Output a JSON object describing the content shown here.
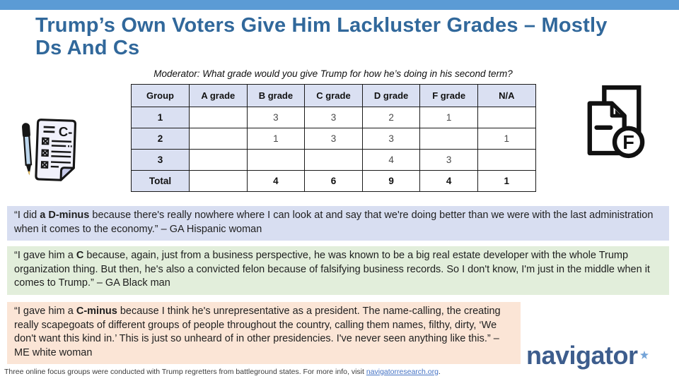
{
  "slide": {
    "title_line1": "Trump’s Own Voters Give Him Lackluster Grades – Mostly",
    "title_line2": "Ds And Cs",
    "moderator_question": "Moderator: What grade would you give Trump for how he’s doing in his second term?"
  },
  "table": {
    "headers": [
      "Group",
      "A grade",
      "B grade",
      "C grade",
      "D grade",
      "F grade",
      "N/A"
    ],
    "rows": [
      {
        "label": "1",
        "values": [
          "",
          "3",
          "3",
          "2",
          "1",
          ""
        ],
        "bold": false
      },
      {
        "label": "2",
        "values": [
          "",
          "1",
          "3",
          "3",
          "",
          "1"
        ],
        "bold": false
      },
      {
        "label": "3",
        "values": [
          "",
          "",
          "",
          "4",
          "3",
          ""
        ],
        "bold": false
      },
      {
        "label": "Total",
        "values": [
          "",
          "4",
          "6",
          "9",
          "4",
          "1"
        ],
        "bold": true
      }
    ]
  },
  "quotes": [
    {
      "bg": "#D8DEF1",
      "segments": [
        {
          "text": "“I did ",
          "bold": false
        },
        {
          "text": "a D-minus",
          "bold": true
        },
        {
          "text": " because there's really nowhere where I can look at and say that we're doing better than we were with the last administration when it comes to the economy.” – GA Hispanic woman",
          "bold": false
        }
      ]
    },
    {
      "bg": "#E2EEDB",
      "segments": [
        {
          "text": "“I gave him a ",
          "bold": false
        },
        {
          "text": "C",
          "bold": true
        },
        {
          "text": " because, again, just from a business perspective, he was known to be a big real estate developer with the whole Trump organization thing. But then, he's also a convicted felon because of falsifying business records. So I don't know, I'm just in the middle when it comes to Trump.” – GA Black man",
          "bold": false
        }
      ]
    },
    {
      "bg": "#FBE5D6",
      "segments": [
        {
          "text": "“I gave him a ",
          "bold": false
        },
        {
          "text": "C-minus",
          "bold": true
        },
        {
          "text": " because I think he's unrepresentative as a president. The name-calling, the creating really scapegoats of different groups of people throughout the country, calling them names, filthy, dirty, ‘We don't want this kind in.’ This is just so unheard of in other presidencies. I've never seen anything like this.” – ME white woman",
          "bold": false
        }
      ]
    }
  ],
  "icons": {
    "left": "graded-paper-with-pen-icon",
    "left_grade": "C-",
    "right": "failing-document-icon",
    "right_grade": "F"
  },
  "logo": {
    "text": "navigator",
    "star": "star-icon"
  },
  "footer": {
    "before_link": "Three online focus groups were conducted with Trump regretters from battleground states. For more info, visit ",
    "link": "navigatorresearch.org",
    "after_link": "."
  },
  "colors": {
    "topbar": "#5B9BD5",
    "title": "#31689B",
    "table_header_bg": "#DAE0F2",
    "quote1_bg": "#D8DEF1",
    "quote2_bg": "#E2EEDB",
    "quote3_bg": "#FBE5D6",
    "logo_text": "#3D5D8D",
    "logo_star": "#74A4D8",
    "link": "#4472C4"
  }
}
